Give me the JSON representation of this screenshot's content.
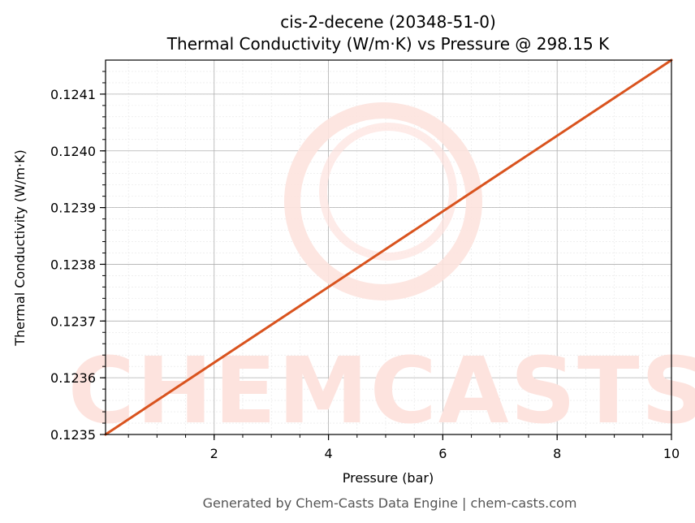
{
  "chart_data": {
    "type": "line",
    "title": "cis-2-decene (20348-51-0)",
    "subtitle": "Thermal Conductivity (W/m·K) vs Pressure @ 298.15 K",
    "xlabel": "Pressure (bar)",
    "ylabel": "Thermal Conductivity (W/m·K)",
    "xlim": [
      0.1,
      10
    ],
    "ylim": [
      0.1235,
      0.12416
    ],
    "xticks": [
      2,
      4,
      6,
      8,
      10
    ],
    "yticks": [
      0.1235,
      0.1236,
      0.1237,
      0.1238,
      0.1239,
      0.124,
      0.1241
    ],
    "ytick_labels": [
      "0.1235",
      "0.1236",
      "0.1237",
      "0.1238",
      "0.1239",
      "0.1240",
      "0.1241"
    ],
    "grid": true,
    "series": [
      {
        "color": "#d9531e",
        "x": [
          0.1,
          10
        ],
        "y": [
          0.1235,
          0.12416
        ]
      }
    ],
    "watermark": "CHEMCASTS"
  },
  "footer": "Generated by Chem-Casts Data Engine | chem-casts.com"
}
